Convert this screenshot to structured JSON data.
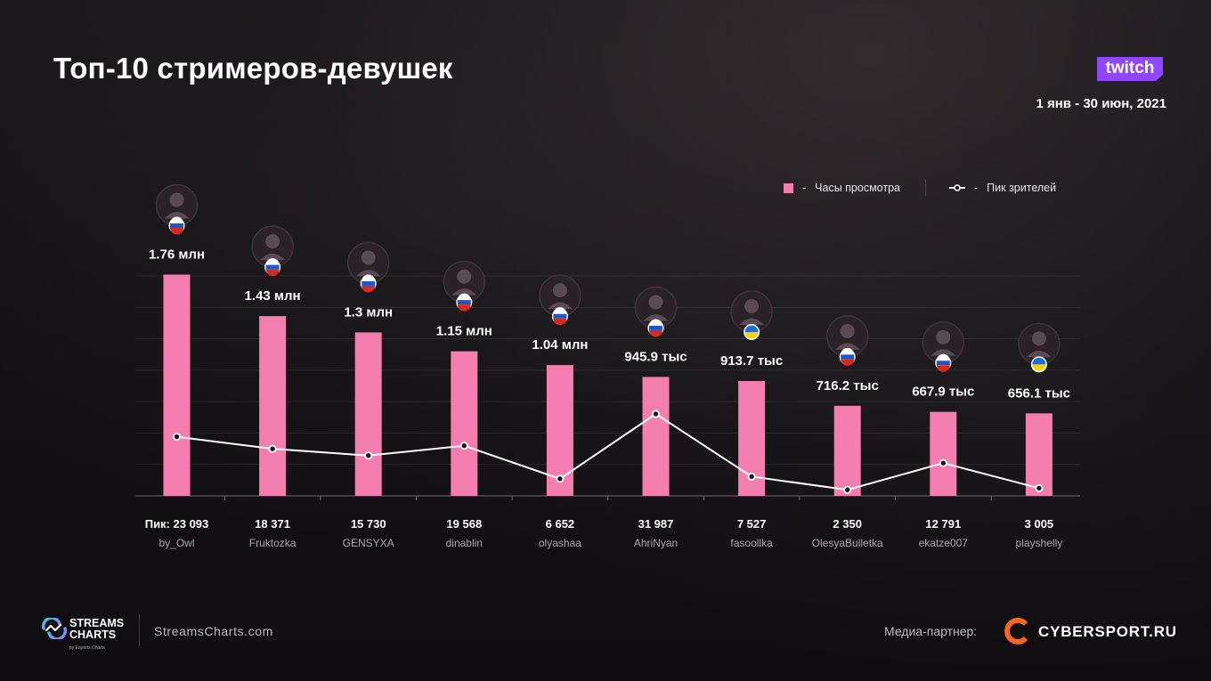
{
  "header": {
    "title": "Топ-10 стримеров-девушек",
    "date_range": "1 янв - 30 июн, 2021",
    "platform_logo_text": "twitch",
    "platform_icon": "twitch-logo"
  },
  "legend": {
    "bars_label": "Часы просмотра",
    "line_label": "Пик зрителей",
    "dash": "-"
  },
  "colors": {
    "bar": "#f47fae",
    "line": "#ffffff",
    "twitch": "#9146ff",
    "cybersport": "#f26522"
  },
  "chart_data": {
    "type": "bar",
    "categories": [
      "by_Owl",
      "Fruktozka",
      "GENSYXA",
      "dinablin",
      "olyashaa",
      "AhriNyan",
      "fasoollka",
      "OlesyaBulletka",
      "ekatze007",
      "playshelly"
    ],
    "series": [
      {
        "name": "Часы просмотра",
        "type": "bar",
        "values": [
          1760000,
          1430000,
          1300000,
          1150000,
          1040000,
          945900,
          913700,
          716200,
          667900,
          656100
        ],
        "labels": [
          "1.76 млн",
          "1.43 млн",
          "1.3 млн",
          "1.15 млн",
          "1.04 млн",
          "945.9 тыс",
          "913.7 тыс",
          "716.2 тыс",
          "667.9 тыс",
          "656.1 тыс"
        ]
      },
      {
        "name": "Пик зрителей",
        "type": "line",
        "values": [
          23093,
          18371,
          15730,
          19568,
          6652,
          31987,
          7527,
          2350,
          12791,
          3005
        ],
        "labels": [
          "Пик: 23 093",
          "18 371",
          "15 730",
          "19 568",
          "6 652",
          "31 987",
          "7 527",
          "2 350",
          "12 791",
          "3 005"
        ]
      }
    ],
    "flags": [
      "ru",
      "ru",
      "ru",
      "ru",
      "ru",
      "ru",
      "ua",
      "ru",
      "ru",
      "ua"
    ],
    "grid": true,
    "legend_position": "top-right"
  },
  "footer": {
    "brand_line1": "STREAMS",
    "brand_line2": "CHARTS",
    "brand_sub": "by Esports Charts",
    "site": "StreamsCharts.com",
    "partner_label": "Медиа-партнер:",
    "partner_name": "CYBERSPORT.RU"
  }
}
